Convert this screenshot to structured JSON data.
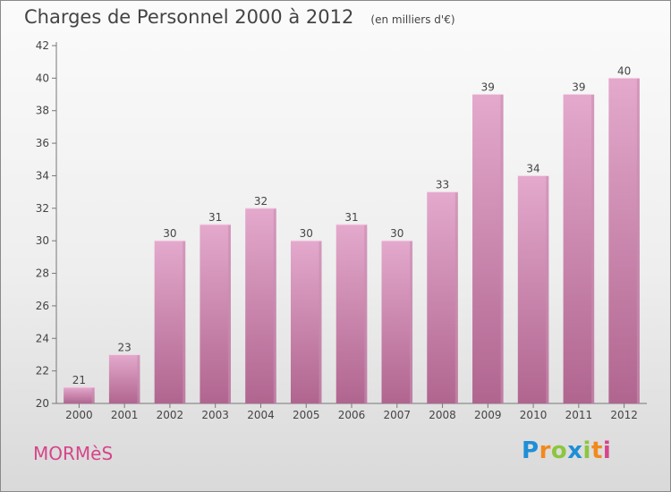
{
  "chart_data": {
    "type": "bar",
    "title": "Charges de Personnel 2000 à 2012",
    "subtitle": "(en milliers d'€)",
    "categories": [
      "2000",
      "2001",
      "2002",
      "2003",
      "2004",
      "2005",
      "2006",
      "2007",
      "2008",
      "2009",
      "2010",
      "2011",
      "2012"
    ],
    "values": [
      21,
      23,
      30,
      31,
      32,
      30,
      31,
      30,
      33,
      39,
      34,
      39,
      40
    ],
    "ylim": [
      20,
      42
    ],
    "yticks": [
      20,
      22,
      24,
      26,
      28,
      30,
      32,
      34,
      36,
      38,
      40,
      42
    ],
    "grid": false,
    "bar_color_top": "#e4a9cd",
    "bar_color_bottom": "#b0658f"
  },
  "footer": {
    "town": "MORMèS",
    "logo_letters": [
      {
        "ch": "P",
        "color": "#1e8fd6"
      },
      {
        "ch": "r",
        "color": "#f08a1c"
      },
      {
        "ch": "o",
        "color": "#8cc63f"
      },
      {
        "ch": "x",
        "color": "#1e8fd6"
      },
      {
        "ch": "i",
        "color": "#8cc63f"
      },
      {
        "ch": "t",
        "color": "#f08a1c"
      },
      {
        "ch": "i",
        "color": "#d6458a"
      }
    ]
  }
}
